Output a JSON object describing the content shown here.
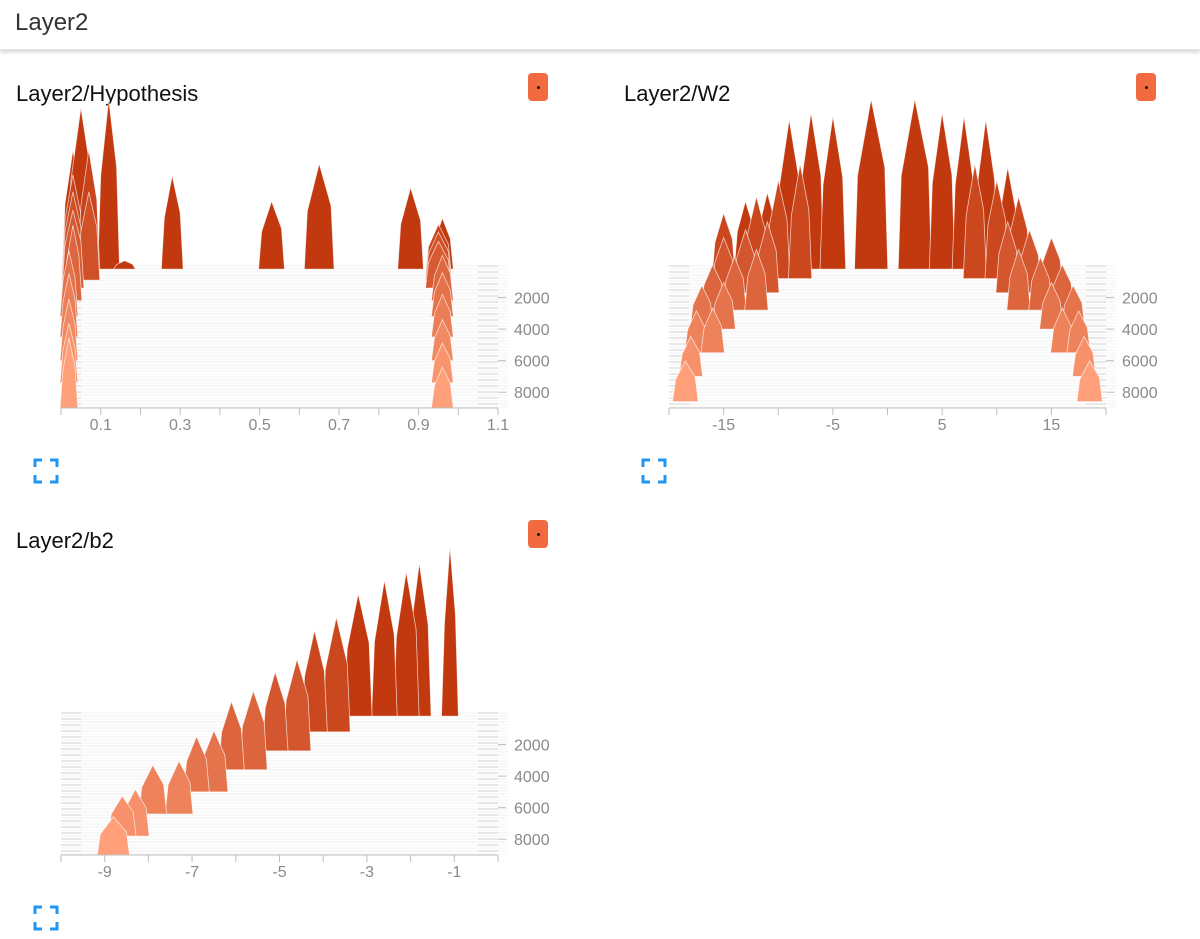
{
  "header": {
    "group_title": "Layer2"
  },
  "colors": {
    "shape_front": "#ffa07a",
    "shape_back": "#c2390f",
    "run_button": "#f26a3f",
    "grid": "#e4e4e4",
    "axis": "#bdbdbd",
    "tick_text": "#8a8a8a",
    "expand_icon": "#2196f3"
  },
  "icons": {
    "run_button": "run-color-dot-icon",
    "expand": "fullscreen-corners-icon"
  },
  "cards": [
    {
      "title": "Layer2/Hypothesis"
    },
    {
      "title": "Layer2/W2"
    },
    {
      "title": "Layer2/b2"
    }
  ],
  "chart_data": [
    {
      "type": "histogram-offset",
      "title": "Layer2/Hypothesis",
      "x_ticks": [
        "0.1",
        "0.3",
        "0.5",
        "0.7",
        "0.9",
        "1.1"
      ],
      "x_tick_values": [
        0.1,
        0.3,
        0.5,
        0.7,
        0.9,
        1.1
      ],
      "xlim": [
        0.0,
        1.1
      ],
      "y_ticks": [
        "2000",
        "4000",
        "6000",
        "8000"
      ],
      "y_tick_values": [
        2000,
        4000,
        6000,
        8000
      ],
      "ylim": [
        0,
        9000
      ],
      "steps": [
        {
          "step": 200,
          "bins": [
            [
              0.03,
              0.04,
              0.7
            ],
            [
              0.05,
              0.05,
              0.95
            ],
            [
              0.12,
              0.04,
              1.0
            ],
            [
              0.16,
              0.04,
              0.05
            ],
            [
              0.28,
              0.04,
              0.55
            ],
            [
              0.53,
              0.05,
              0.4
            ],
            [
              0.65,
              0.06,
              0.62
            ],
            [
              0.88,
              0.05,
              0.48
            ],
            [
              0.96,
              0.04,
              0.3
            ]
          ]
        },
        {
          "step": 500,
          "bins": [
            [
              0.03,
              0.04,
              0.6
            ],
            [
              0.07,
              0.04,
              0.75
            ],
            [
              0.95,
              0.05,
              0.3
            ]
          ]
        },
        {
          "step": 900,
          "bins": [
            [
              0.03,
              0.04,
              0.55
            ],
            [
              0.07,
              0.04,
              0.55
            ],
            [
              0.95,
              0.05,
              0.3
            ]
          ]
        },
        {
          "step": 1400,
          "bins": [
            [
              0.03,
              0.04,
              0.5
            ],
            [
              0.95,
              0.05,
              0.3
            ]
          ]
        },
        {
          "step": 2200,
          "bins": [
            [
              0.03,
              0.03,
              0.5
            ],
            [
              0.96,
              0.04,
              0.3
            ]
          ]
        },
        {
          "step": 3200,
          "bins": [
            [
              0.02,
              0.03,
              0.45
            ],
            [
              0.96,
              0.04,
              0.3
            ]
          ]
        },
        {
          "step": 4500,
          "bins": [
            [
              0.02,
              0.03,
              0.45
            ],
            [
              0.96,
              0.04,
              0.3
            ]
          ]
        },
        {
          "step": 6000,
          "bins": [
            [
              0.02,
              0.03,
              0.45
            ],
            [
              0.96,
              0.04,
              0.3
            ]
          ]
        },
        {
          "step": 7400,
          "bins": [
            [
              0.02,
              0.03,
              0.45
            ],
            [
              0.96,
              0.04,
              0.3
            ]
          ]
        },
        {
          "step": 9000,
          "bins": [
            [
              0.02,
              0.03,
              0.55
            ],
            [
              0.96,
              0.04,
              0.32
            ]
          ]
        }
      ]
    },
    {
      "type": "histogram-offset",
      "title": "Layer2/W2",
      "x_ticks": [
        "-15",
        "-5",
        "5",
        "15"
      ],
      "x_tick_values": [
        -15,
        -5,
        5,
        15
      ],
      "xlim": [
        -20,
        20
      ],
      "y_ticks": [
        "2000",
        "4000",
        "6000",
        "8000"
      ],
      "y_tick_values": [
        2000,
        4000,
        6000,
        8000
      ],
      "ylim": [
        0,
        9000
      ],
      "steps": [
        {
          "step": 200,
          "bins": [
            [
              -13,
              1.5,
              0.4
            ],
            [
              -11,
              1.5,
              0.45
            ],
            [
              -9,
              1.8,
              0.88
            ],
            [
              -7,
              1.8,
              0.92
            ],
            [
              -5,
              1.8,
              0.9
            ],
            [
              -1.5,
              2.5,
              1.0
            ],
            [
              2.5,
              2.5,
              1.0
            ],
            [
              5,
              1.8,
              0.92
            ],
            [
              7,
              1.6,
              0.9
            ],
            [
              9,
              1.6,
              0.88
            ],
            [
              11,
              1.4,
              0.6
            ]
          ]
        },
        {
          "step": 800,
          "bins": [
            [
              -15,
              1.6,
              0.4
            ],
            [
              -12,
              1.6,
              0.5
            ],
            [
              -10,
              1.6,
              0.6
            ],
            [
              -8,
              1.6,
              0.7
            ],
            [
              8,
              1.6,
              0.7
            ],
            [
              10,
              1.6,
              0.6
            ],
            [
              12,
              1.6,
              0.5
            ]
          ]
        },
        {
          "step": 1700,
          "bins": [
            [
              -15,
              1.6,
              0.35
            ],
            [
              -13,
              1.6,
              0.4
            ],
            [
              -11,
              1.6,
              0.45
            ],
            [
              11,
              1.6,
              0.45
            ],
            [
              13,
              1.6,
              0.4
            ],
            [
              15,
              1.6,
              0.35
            ]
          ]
        },
        {
          "step": 2800,
          "bins": [
            [
              -16,
              1.6,
              0.3
            ],
            [
              -14,
              1.6,
              0.35
            ],
            [
              -12,
              1.6,
              0.4
            ],
            [
              12,
              1.6,
              0.4
            ],
            [
              14,
              1.6,
              0.35
            ],
            [
              16,
              1.6,
              0.3
            ]
          ]
        },
        {
          "step": 4000,
          "bins": [
            [
              -17,
              1.6,
              0.3
            ],
            [
              -15,
              1.6,
              0.32
            ],
            [
              15,
              1.6,
              0.32
            ],
            [
              17,
              1.6,
              0.3
            ]
          ]
        },
        {
          "step": 5500,
          "bins": [
            [
              -17.5,
              1.6,
              0.3
            ],
            [
              -16,
              1.6,
              0.32
            ],
            [
              16,
              1.6,
              0.32
            ],
            [
              17.5,
              1.6,
              0.3
            ]
          ]
        },
        {
          "step": 7000,
          "bins": [
            [
              -18,
              1.6,
              0.3
            ],
            [
              18,
              1.6,
              0.3
            ]
          ]
        },
        {
          "step": 8600,
          "bins": [
            [
              -18.5,
              1.8,
              0.32
            ],
            [
              18.5,
              1.8,
              0.32
            ]
          ]
        }
      ]
    },
    {
      "type": "histogram-offset",
      "title": "Layer2/b2",
      "x_ticks": [
        "-9",
        "-7",
        "-5",
        "-3",
        "-1"
      ],
      "x_tick_values": [
        -9,
        -7,
        -5,
        -3,
        -1
      ],
      "xlim": [
        -10,
        0
      ],
      "y_ticks": [
        "2000",
        "4000",
        "6000",
        "8000"
      ],
      "y_tick_values": [
        2000,
        4000,
        6000,
        8000
      ],
      "ylim": [
        0,
        9000
      ],
      "steps": [
        {
          "step": 200,
          "bins": [
            [
              -1.1,
              0.25,
              1.0
            ],
            [
              -1.8,
              0.4,
              0.9
            ],
            [
              -2.1,
              0.45,
              0.85
            ],
            [
              -2.6,
              0.45,
              0.8
            ],
            [
              -3.2,
              0.5,
              0.72
            ]
          ]
        },
        {
          "step": 1200,
          "bins": [
            [
              -3.7,
              0.5,
              0.7
            ],
            [
              -4.2,
              0.45,
              0.62
            ]
          ]
        },
        {
          "step": 2400,
          "bins": [
            [
              -4.6,
              0.5,
              0.58
            ],
            [
              -5.1,
              0.45,
              0.5
            ]
          ]
        },
        {
          "step": 3600,
          "bins": [
            [
              -5.6,
              0.5,
              0.52
            ],
            [
              -6.1,
              0.45,
              0.45
            ]
          ]
        },
        {
          "step": 5000,
          "bins": [
            [
              -6.5,
              0.5,
              0.42
            ],
            [
              -6.9,
              0.45,
              0.38
            ]
          ]
        },
        {
          "step": 6400,
          "bins": [
            [
              -7.3,
              0.5,
              0.38
            ],
            [
              -7.9,
              0.5,
              0.35
            ]
          ]
        },
        {
          "step": 7800,
          "bins": [
            [
              -8.3,
              0.5,
              0.35
            ],
            [
              -8.6,
              0.5,
              0.3
            ]
          ]
        },
        {
          "step": 9000,
          "bins": [
            [
              -8.8,
              0.6,
              0.3
            ]
          ]
        }
      ]
    }
  ]
}
